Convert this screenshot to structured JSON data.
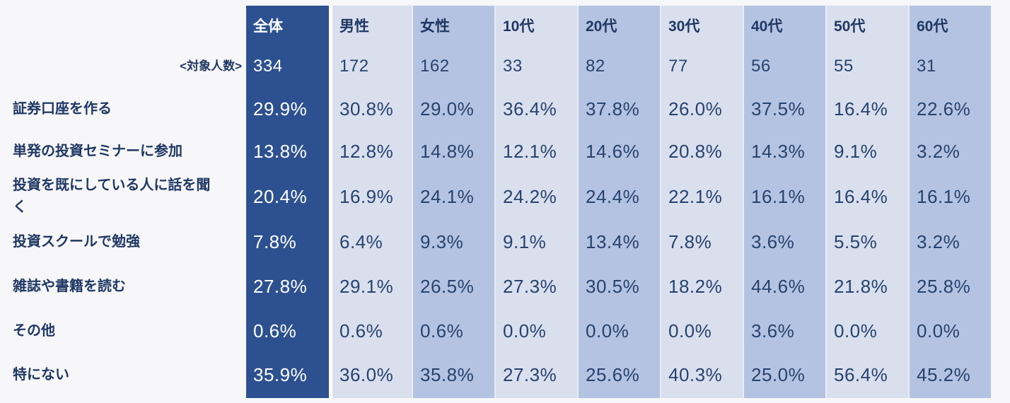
{
  "chart_data": {
    "type": "table",
    "description": "Survey result cross-tabulation table in Japanese: actions related to starting investment, by overall / gender / age group. Percent of respondents per column.",
    "columns": [
      "全体",
      "男性",
      "女性",
      "10代",
      "20代",
      "30代",
      "40代",
      "50代",
      "60代"
    ],
    "sample_row": {
      "label": "<対象人数>",
      "values": [
        "334",
        "172",
        "162",
        "33",
        "82",
        "77",
        "56",
        "55",
        "31"
      ]
    },
    "data_rows": [
      {
        "label": "証券口座を作る",
        "values": [
          "29.9%",
          "30.8%",
          "29.0%",
          "36.4%",
          "37.8%",
          "26.0%",
          "37.5%",
          "16.4%",
          "22.6%"
        ]
      },
      {
        "label": "単発の投資セミナーに参加",
        "values": [
          "13.8%",
          "12.8%",
          "14.8%",
          "12.1%",
          "14.6%",
          "20.8%",
          "14.3%",
          "9.1%",
          "3.2%"
        ]
      },
      {
        "label": "投資を既にしている人に話を聞く",
        "values": [
          "20.4%",
          "16.9%",
          "24.1%",
          "24.2%",
          "24.4%",
          "22.1%",
          "16.1%",
          "16.4%",
          "16.1%"
        ]
      },
      {
        "label": "投資スクールで勉強",
        "values": [
          "7.8%",
          "6.4%",
          "9.3%",
          "9.1%",
          "13.4%",
          "7.8%",
          "3.6%",
          "5.5%",
          "3.2%"
        ]
      },
      {
        "label": "雑誌や書籍を読む",
        "values": [
          "27.8%",
          "29.1%",
          "26.5%",
          "27.3%",
          "30.5%",
          "18.2%",
          "44.6%",
          "21.8%",
          "25.8%"
        ]
      },
      {
        "label": "その他",
        "values": [
          "0.6%",
          "0.6%",
          "0.6%",
          "0.0%",
          "0.0%",
          "0.0%",
          "3.6%",
          "0.0%",
          "0.0%"
        ]
      },
      {
        "label": "特にない",
        "values": [
          "35.9%",
          "36.0%",
          "35.8%",
          "27.3%",
          "25.6%",
          "40.3%",
          "25.0%",
          "56.4%",
          "45.2%"
        ]
      }
    ]
  },
  "column_tones": [
    "dark",
    "light",
    "medium",
    "light",
    "medium",
    "light",
    "medium",
    "light",
    "medium"
  ],
  "colors": {
    "total_column_bg": "#2d5190",
    "light_column_bg": "#dadfee",
    "medium_column_bg": "#b4c3e1",
    "heading_text": "#1f3864",
    "value_text": "#26436f",
    "total_column_text": "#ffffff",
    "page_bg": "#f7f6f8"
  }
}
